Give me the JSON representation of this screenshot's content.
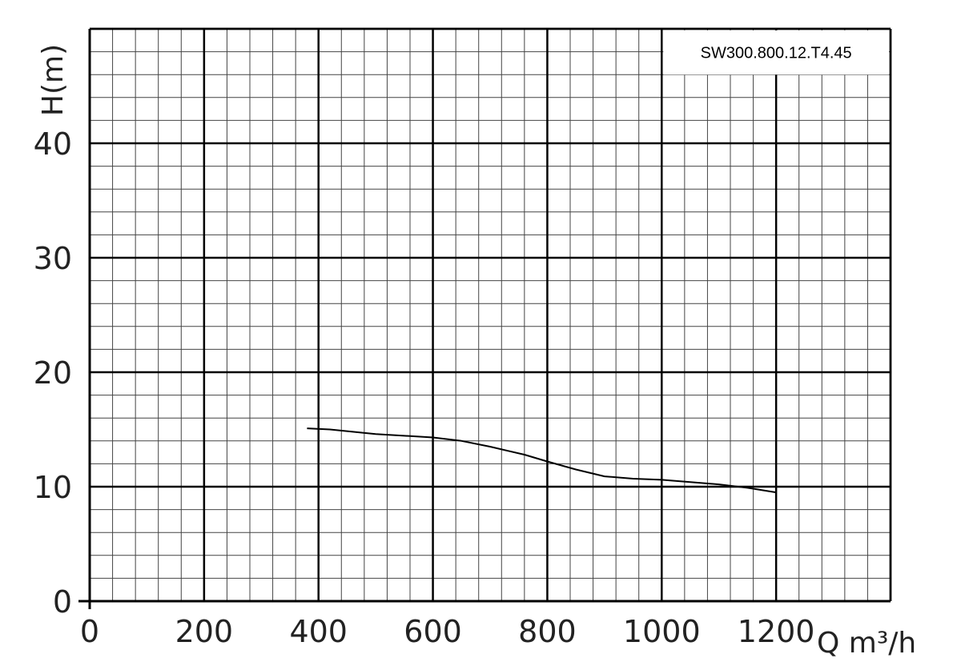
{
  "chart_data": {
    "type": "line",
    "title": "",
    "model_label": "SW300.800.12.T4.45",
    "ylabel": "H(m)",
    "xlabel": "Q m³/h",
    "xlim": [
      0,
      1400
    ],
    "ylim": [
      0,
      50
    ],
    "x_ticks": [
      "0",
      "200",
      "400",
      "600",
      "800",
      "1000",
      "1200"
    ],
    "y_ticks": [
      "0",
      "10",
      "20",
      "30",
      "40"
    ],
    "x_tick_values": [
      0,
      200,
      400,
      600,
      800,
      1000,
      1200
    ],
    "y_tick_values": [
      0,
      10,
      20,
      30,
      40
    ],
    "x_minor_step": 40,
    "y_minor_step": 2,
    "x_major_step": 200,
    "y_major_step": 10,
    "grid": true,
    "series": [
      {
        "x": [
          380,
          420,
          500,
          600,
          650,
          700,
          760,
          800,
          850,
          900,
          950,
          1000,
          1050,
          1100,
          1150,
          1200
        ],
        "y": [
          15.1,
          15.0,
          14.6,
          14.3,
          14.0,
          13.5,
          12.8,
          12.2,
          11.5,
          10.9,
          10.7,
          10.6,
          10.4,
          10.2,
          9.9,
          9.5
        ]
      }
    ],
    "colors": {
      "major_grid": "#000000",
      "minor_grid": "#444444",
      "curve": "#000000"
    }
  }
}
